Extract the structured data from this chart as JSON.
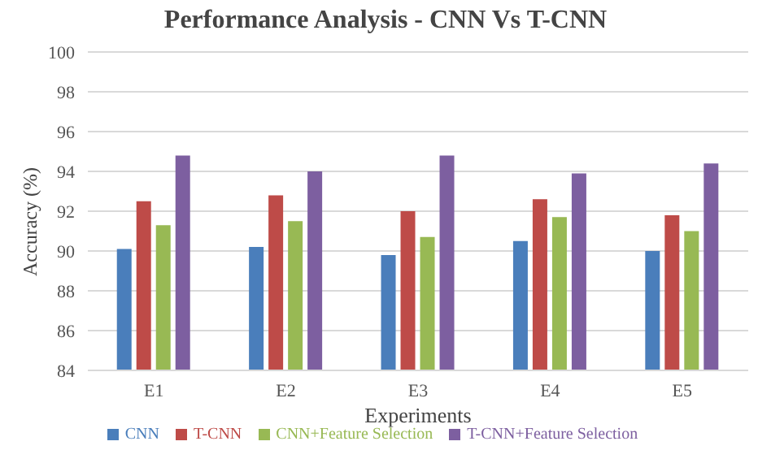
{
  "chart_data": {
    "type": "bar",
    "title": "Performance Analysis - CNN Vs T-CNN",
    "xlabel": "Experiments",
    "ylabel": "Accuracy (%)",
    "categories": [
      "E1",
      "E2",
      "E3",
      "E4",
      "E5"
    ],
    "series": [
      {
        "name": "CNN",
        "color": "#4a7ebb",
        "values": [
          90.1,
          90.2,
          89.8,
          90.5,
          90.0
        ]
      },
      {
        "name": "T-CNN",
        "color": "#be4b48",
        "values": [
          92.5,
          92.8,
          92.0,
          92.6,
          91.8
        ]
      },
      {
        "name": "CNN+Feature Selection",
        "color": "#98b954",
        "values": [
          91.3,
          91.5,
          90.7,
          91.7,
          91.0
        ]
      },
      {
        "name": "T-CNN+Feature Selection",
        "color": "#7d5fa0",
        "values": [
          94.8,
          94.0,
          94.8,
          93.9,
          94.4
        ]
      }
    ],
    "ylim": [
      84,
      100
    ],
    "yticks": [
      84,
      86,
      88,
      90,
      92,
      94,
      96,
      98,
      100
    ],
    "grid": "y",
    "legend": "bottom"
  }
}
